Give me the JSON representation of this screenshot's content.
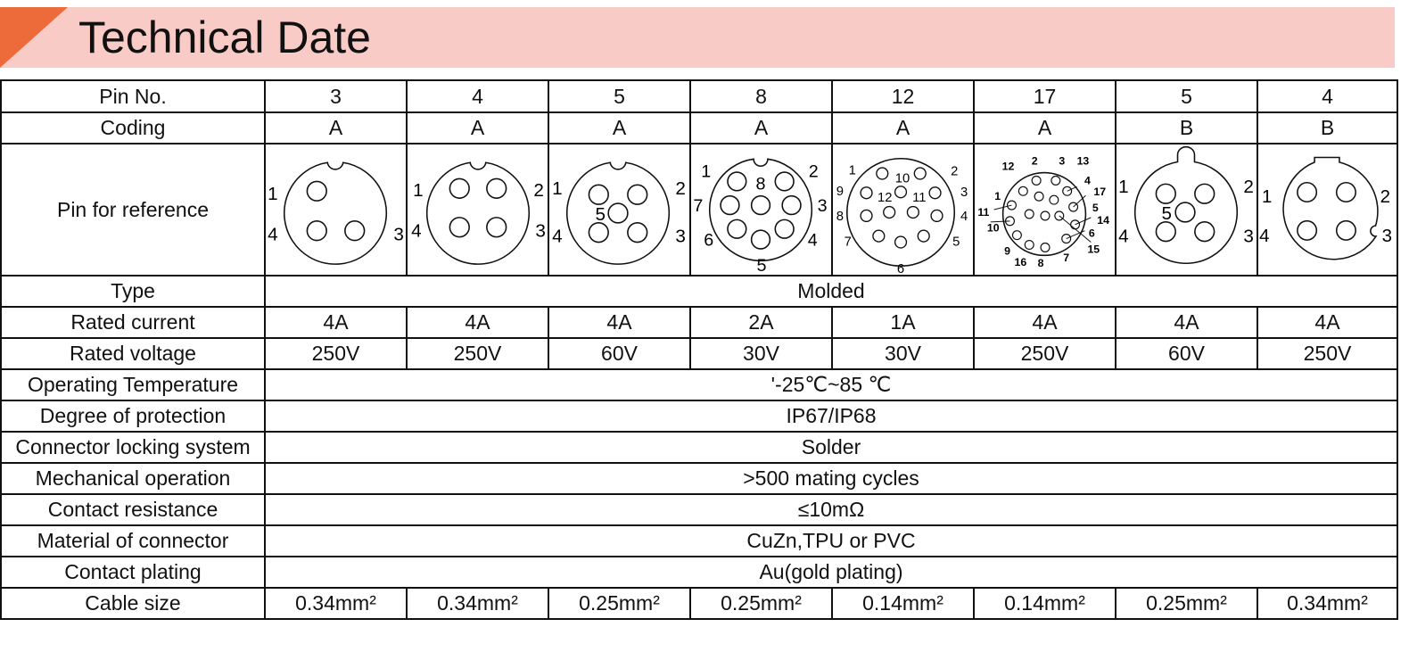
{
  "title": "Technical Date",
  "colors": {
    "banner": "#f9cbc6",
    "accent": "#ed6a3a",
    "grid": "#111111"
  },
  "rows": {
    "pin_no": {
      "label": "Pin No.",
      "values": [
        "3",
        "4",
        "5",
        "8",
        "12",
        "17",
        "5",
        "4"
      ]
    },
    "coding": {
      "label": "Coding",
      "values": [
        "A",
        "A",
        "A",
        "A",
        "A",
        "A",
        "B",
        "B"
      ]
    },
    "pin_reference": {
      "label": "Pin for reference",
      "diagrams": [
        {
          "labels": [
            "1",
            "4",
            "3"
          ]
        },
        {
          "labels": [
            "1",
            "2",
            "4",
            "3"
          ]
        },
        {
          "labels": [
            "1",
            "2",
            "5",
            "4",
            "3"
          ]
        },
        {
          "labels": [
            "1",
            "2",
            "8",
            "7",
            "3",
            "6",
            "4",
            "5"
          ]
        },
        {
          "labels": [
            "1",
            "10",
            "2",
            "9",
            "12",
            "11",
            "3",
            "8",
            "4",
            "7",
            "5",
            "6"
          ]
        },
        {
          "labels": [
            "12",
            "2",
            "3",
            "13",
            "4",
            "1",
            "17",
            "5",
            "11",
            "14",
            "10",
            "6",
            "15",
            "9",
            "16",
            "8",
            "7"
          ]
        },
        {
          "labels": [
            "1",
            "2",
            "5",
            "4",
            "3"
          ]
        },
        {
          "labels": [
            "1",
            "2",
            "4",
            "3"
          ]
        }
      ]
    },
    "type": {
      "label": "Type",
      "value": "Molded"
    },
    "rated_current": {
      "label": "Rated current",
      "values": [
        "4A",
        "4A",
        "4A",
        "2A",
        "1A",
        "4A",
        "4A",
        "4A"
      ]
    },
    "rated_voltage": {
      "label": "Rated voltage",
      "values": [
        "250V",
        "250V",
        "60V",
        "30V",
        "30V",
        "250V",
        "60V",
        "250V"
      ]
    },
    "operating_temperature": {
      "label": "Operating Temperature",
      "value": "'-25℃~85 ℃"
    },
    "degree_protection": {
      "label": "Degree of protection",
      "value": "IP67/IP68"
    },
    "locking_system": {
      "label": "Connector locking system",
      "value": "Solder"
    },
    "mechanical_operation": {
      "label": "Mechanical operation",
      "value": ">500 mating cycles"
    },
    "contact_resistance": {
      "label": "Contact resistance",
      "value": "≤10mΩ"
    },
    "material": {
      "label": "Material of connector",
      "value": "CuZn,TPU or PVC"
    },
    "contact_plating": {
      "label": "Contact plating",
      "value": "Au(gold plating)"
    },
    "cable_size": {
      "label": "Cable size",
      "values": [
        "0.34mm²",
        "0.34mm²",
        "0.25mm²",
        "0.25mm²",
        "0.14mm²",
        "0.14mm²",
        "0.25mm²",
        "0.34mm²"
      ]
    }
  }
}
